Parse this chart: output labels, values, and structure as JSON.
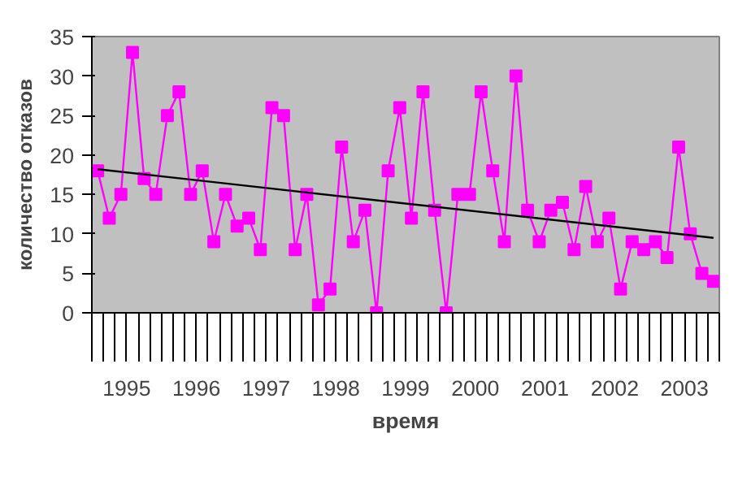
{
  "chart_data": {
    "type": "line",
    "xlabel": "время",
    "ylabel": "количество отказов",
    "categories": [
      null,
      null,
      null,
      null,
      null,
      null,
      null,
      null,
      null,
      null,
      null,
      null,
      null,
      null,
      null,
      null,
      null,
      null,
      null,
      null,
      null,
      null,
      null,
      null,
      null,
      null,
      null,
      null,
      null,
      null,
      null,
      null,
      null,
      null,
      null,
      null,
      null,
      null,
      null,
      null,
      null,
      null,
      null,
      null,
      null,
      null,
      null,
      null,
      null,
      null,
      null,
      null,
      null,
      null
    ],
    "series": [
      {
        "color": "#ff00ff",
        "values": [
          18,
          12,
          15,
          33,
          17,
          15,
          25,
          28,
          15,
          18,
          9,
          15,
          11,
          12,
          8,
          26,
          25,
          8,
          15,
          1,
          3,
          21,
          9,
          13,
          0,
          18,
          26,
          12,
          28,
          13,
          0,
          15,
          15,
          28,
          18,
          9,
          30,
          13,
          9,
          13,
          14,
          8,
          16,
          9,
          12,
          3,
          9,
          8,
          9,
          7,
          21,
          10,
          5,
          4
        ]
      },
      {
        "type": "line",
        "color": "#000000",
        "values": [
          18.2,
          null,
          null,
          null,
          null,
          null,
          null,
          null,
          null,
          null,
          null,
          null,
          null,
          null,
          null,
          null,
          null,
          null,
          null,
          null,
          null,
          null,
          null,
          null,
          null,
          null,
          null,
          null,
          null,
          null,
          null,
          null,
          null,
          null,
          null,
          null,
          null,
          null,
          null,
          null,
          null,
          null,
          null,
          null,
          null,
          null,
          null,
          null,
          null,
          null,
          null,
          null,
          null,
          9.5
        ],
        "marker": "none"
      }
    ],
    "annotations": [
      "1995",
      "1996",
      "1997",
      "1998",
      "1999",
      "2000",
      "2001",
      "2002",
      "2003"
    ],
    "ylim": [
      0,
      35
    ],
    "yticks": [
      0,
      5,
      10,
      15,
      20,
      25,
      30,
      35
    ],
    "grid": false,
    "marker": "square",
    "line_style": "solid"
  }
}
